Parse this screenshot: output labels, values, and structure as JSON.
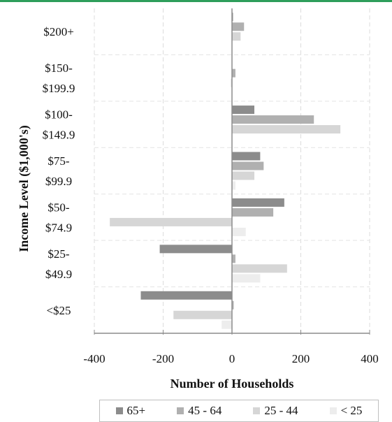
{
  "accent_color": "#2e9e5b",
  "chart_data": {
    "type": "bar",
    "orientation": "horizontal",
    "xlabel": "Number of Households",
    "ylabel": "Income Level ($1,000's)",
    "xlim": [
      -400,
      400
    ],
    "xticks": [
      -400,
      -200,
      0,
      200,
      400
    ],
    "grid": "vertical dashed",
    "legend_position": "bottom",
    "categories": [
      {
        "lines": [
          "$200+"
        ]
      },
      {
        "lines": [
          "$150-",
          "$199.9"
        ]
      },
      {
        "lines": [
          "$100-",
          "$149.9"
        ]
      },
      {
        "lines": [
          "$75-",
          "$99.9"
        ]
      },
      {
        "lines": [
          "$50-",
          "$74.9"
        ]
      },
      {
        "lines": [
          "$25-",
          "$49.9"
        ]
      },
      {
        "lines": [
          "<$25"
        ]
      }
    ],
    "series": [
      {
        "name": "65+",
        "color": "#8c8c8c",
        "values": [
          3,
          0,
          65,
          82,
          152,
          -210,
          -265
        ]
      },
      {
        "name": "45 - 64",
        "color": "#b0b0b0",
        "values": [
          35,
          10,
          238,
          92,
          120,
          10,
          5
        ]
      },
      {
        "name": "25 - 44",
        "color": "#d6d6d6",
        "values": [
          25,
          -3,
          315,
          65,
          -355,
          160,
          -170
        ]
      },
      {
        "name": "< 25",
        "color": "#ededed",
        "values": [
          0,
          0,
          0,
          10,
          40,
          82,
          -30
        ]
      }
    ]
  }
}
